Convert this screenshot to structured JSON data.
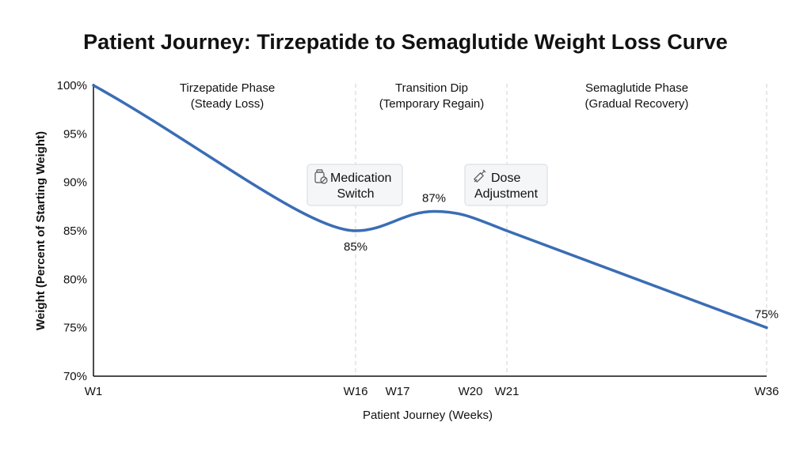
{
  "chart_data": {
    "type": "line",
    "title": "Patient Journey: Tirzepatide to Semaglutide Weight Loss Curve",
    "xlabel": "Patient Journey (Weeks)",
    "ylabel": "Weight (Percent of Starting Weight)",
    "ylim": [
      70,
      100
    ],
    "yticks": [
      70,
      75,
      80,
      85,
      90,
      95,
      100
    ],
    "ytick_labels": [
      "70%",
      "75%",
      "80%",
      "85%",
      "90%",
      "95%",
      "100%"
    ],
    "xticks": [
      {
        "week": 1,
        "label": "W1"
      },
      {
        "week": 16,
        "label": "W16"
      },
      {
        "week": 17,
        "label": "W17"
      },
      {
        "week": 20,
        "label": "W20"
      },
      {
        "week": 21,
        "label": "W21"
      },
      {
        "week": 36,
        "label": "W36"
      }
    ],
    "grid": false,
    "phase_dividers_weeks": [
      16,
      21,
      36
    ],
    "series": [
      {
        "color": "#3a6db5",
        "points": [
          {
            "week": 1,
            "value": 100
          },
          {
            "week": 16,
            "value": 85
          },
          {
            "week": 18.5,
            "value": 87
          },
          {
            "week": 21,
            "value": 85
          },
          {
            "week": 36,
            "value": 75
          }
        ]
      }
    ],
    "data_labels": [
      {
        "week": 16,
        "value": 85,
        "text": "85%",
        "position": "below"
      },
      {
        "week": 18.5,
        "value": 87,
        "text": "87%",
        "position": "above"
      },
      {
        "week": 36,
        "value": 75,
        "text": "75%",
        "position": "above"
      }
    ],
    "phases": [
      {
        "line1": "Tirzepatide Phase",
        "line2": "(Steady Loss)"
      },
      {
        "line1": "Transition Dip",
        "line2": "(Temporary Regain)"
      },
      {
        "line1": "Semaglutide Phase",
        "line2": "(Gradual Recovery)"
      }
    ],
    "callouts": [
      {
        "icon": "pill-bottle-icon",
        "line1": "Medication",
        "line2": "Switch"
      },
      {
        "icon": "syringe-icon",
        "line1": "Dose",
        "line2": "Adjustment"
      }
    ]
  }
}
